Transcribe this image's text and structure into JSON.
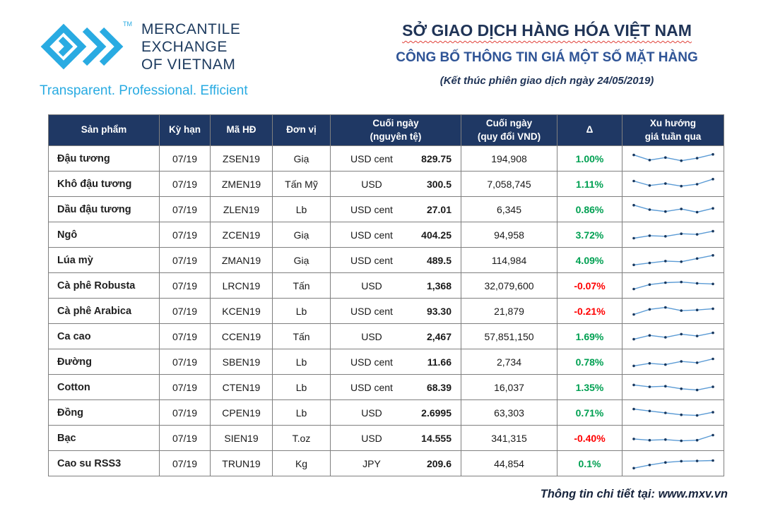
{
  "brand": {
    "name_lines": [
      "MERCANTILE",
      "EXCHANGE",
      "OF VIETNAM"
    ],
    "trademark": "TM",
    "tagline": "Transparent. Professional. Efficient",
    "logo_color": "#29ABE2"
  },
  "header": {
    "title1": "SỞ GIAO DỊCH HÀNG HÓA VIỆT NAM",
    "title2": "CÔNG BỐ THÔNG TIN GIÁ MỘT SỐ MẶT HÀNG",
    "title3": "(Kết thúc phiên giao dịch ngày 24/05/2019)"
  },
  "colors": {
    "header_bg": "#1F3864",
    "positive": "#00A052",
    "negative": "#FF0000",
    "accent_blue": "#29ABE2",
    "sparkline_line": "#5B9BD5",
    "sparkline_marker": "#17375E"
  },
  "table": {
    "columns": [
      "Sản phẩm",
      "Kỳ hạn",
      "Mã HĐ",
      "Đơn vị",
      "Cuối ngày\n(nguyên tệ)",
      "Cuối ngày\n(quy đổi VND)",
      "Δ",
      "Xu hướng\ngiá tuần qua"
    ],
    "rows": [
      {
        "name": "Đậu tương",
        "term": "07/19",
        "code": "ZSEN19",
        "unit": "Giạ",
        "currency": "USD cent",
        "close_native": "829.75",
        "close_vnd": "194,908",
        "delta": "1.00%",
        "trend": [
          80,
          40,
          60,
          35,
          55,
          85
        ]
      },
      {
        "name": "Khô đậu tương",
        "term": "07/19",
        "code": "ZMEN19",
        "unit": "Tấn Mỹ",
        "currency": "USD",
        "close_native": "300.5",
        "close_vnd": "7,058,745",
        "delta": "1.11%",
        "trend": [
          75,
          40,
          55,
          35,
          50,
          90
        ]
      },
      {
        "name": "Dầu đậu tương",
        "term": "07/19",
        "code": "ZLEN19",
        "unit": "Lb",
        "currency": "USD cent",
        "close_native": "27.01",
        "close_vnd": "6,345",
        "delta": "0.86%",
        "trend": [
          85,
          50,
          35,
          55,
          30,
          60
        ]
      },
      {
        "name": "Ngô",
        "term": "07/19",
        "code": "ZCEN19",
        "unit": "Giạ",
        "currency": "USD cent",
        "close_native": "404.25",
        "close_vnd": "94,958",
        "delta": "3.72%",
        "trend": [
          25,
          45,
          40,
          60,
          55,
          80
        ]
      },
      {
        "name": "Lúa mỳ",
        "term": "07/19",
        "code": "ZMAN19",
        "unit": "Giạ",
        "currency": "USD cent",
        "close_native": "489.5",
        "close_vnd": "114,984",
        "delta": "4.09%",
        "trend": [
          15,
          30,
          45,
          40,
          65,
          90
        ]
      },
      {
        "name": "Cà phê Robusta",
        "term": "07/19",
        "code": "LRCN19",
        "unit": "Tấn",
        "currency": "USD",
        "close_native": "1,368",
        "close_vnd": "32,079,600",
        "delta": "-0.07%",
        "trend": [
          25,
          60,
          75,
          80,
          70,
          65
        ]
      },
      {
        "name": "Cà phê Arabica",
        "term": "07/19",
        "code": "KCEN19",
        "unit": "Lb",
        "currency": "USD cent",
        "close_native": "93.30",
        "close_vnd": "21,879",
        "delta": "-0.21%",
        "trend": [
          25,
          65,
          80,
          55,
          60,
          70
        ]
      },
      {
        "name": "Ca cao",
        "term": "07/19",
        "code": "CCEN19",
        "unit": "Tấn",
        "currency": "USD",
        "close_native": "2,467",
        "close_vnd": "57,851,150",
        "delta": "1.69%",
        "trend": [
          30,
          60,
          45,
          70,
          55,
          80
        ]
      },
      {
        "name": "Đường",
        "term": "07/19",
        "code": "SBEN19",
        "unit": "Lb",
        "currency": "USD cent",
        "close_native": "11.66",
        "close_vnd": "2,734",
        "delta": "0.78%",
        "trend": [
          20,
          40,
          30,
          55,
          45,
          75
        ]
      },
      {
        "name": "Cotton",
        "term": "07/19",
        "code": "CTEN19",
        "unit": "Lb",
        "currency": "USD cent",
        "close_native": "68.39",
        "close_vnd": "16,037",
        "delta": "1.35%",
        "trend": [
          70,
          55,
          60,
          40,
          30,
          55
        ]
      },
      {
        "name": "Đồng",
        "term": "07/19",
        "code": "CPEN19",
        "unit": "Lb",
        "currency": "USD",
        "close_native": "2.6995",
        "close_vnd": "63,303",
        "delta": "0.71%",
        "trend": [
          80,
          65,
          50,
          35,
          30,
          55
        ]
      },
      {
        "name": "Bạc",
        "term": "07/19",
        "code": "SIEN19",
        "unit": "T.oz",
        "currency": "USD",
        "close_native": "14.555",
        "close_vnd": "341,315",
        "delta": "-0.40%",
        "trend": [
          45,
          35,
          40,
          30,
          35,
          75
        ]
      },
      {
        "name": "Cao su RSS3",
        "term": "07/19",
        "code": "TRUN19",
        "unit": "Kg",
        "currency": "JPY",
        "close_native": "209.6",
        "close_vnd": "44,854",
        "delta": "0.1%",
        "trend": [
          15,
          40,
          60,
          70,
          72,
          75
        ]
      }
    ]
  },
  "footer": {
    "note": "Thông tin chi tiết tại: www.mxv.vn"
  }
}
